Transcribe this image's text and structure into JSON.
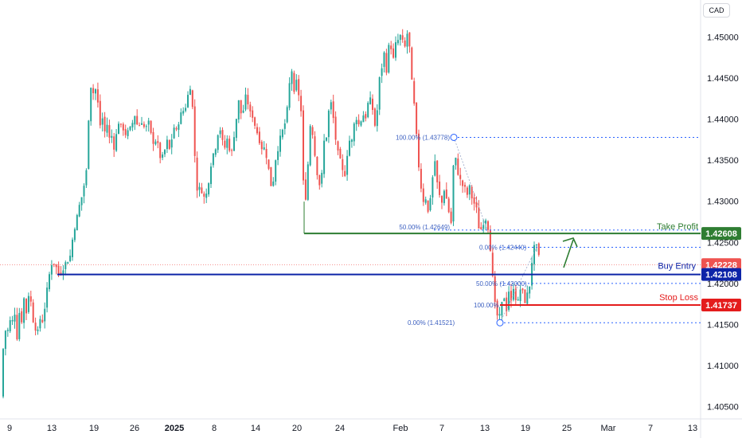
{
  "currency": "CAD",
  "colors": {
    "up": "#26a69a",
    "down": "#ef5350",
    "take_profit": "#2e7d32",
    "buy_entry": "#0d24a8",
    "stop_loss": "#e41c1c",
    "current": "#ef5350",
    "fib": "#2962ff",
    "axis_text": "#131722",
    "fib_text": "#3b5fc0"
  },
  "levels": {
    "take_profit": {
      "label": "Take Profit",
      "price_label": "1.42608",
      "price": 1.42608
    },
    "buy_entry": {
      "label": "Buy Entry",
      "price_label": "1.42108",
      "price": 1.42108
    },
    "stop_loss": {
      "label": "Stop Loss",
      "price_label": "1.41737",
      "price": 1.41737
    },
    "current": {
      "price_label": "1.42228",
      "price": 1.42228
    }
  },
  "fib_labels": {
    "top_100": "100.00% (1.43778)",
    "top_50": "50.00% (1.42649)",
    "right_0": "0.00% (1.42440)",
    "right_50": "50.00% (1.42000)",
    "right_100": "100.00%",
    "bottom_0": "0.00% (1.41521)"
  },
  "chart_data": {
    "type": "candlestick",
    "symbol_currency": "CAD",
    "ylim": [
      1.4035,
      1.4545
    ],
    "y_ticks": [
      "1.45000",
      "1.44500",
      "1.44000",
      "1.43500",
      "1.43000",
      "1.42500",
      "1.42000",
      "1.41500",
      "1.41000",
      "1.40500"
    ],
    "x_ticks": [
      "9",
      "13",
      "19",
      "26",
      "2025",
      "8",
      "14",
      "20",
      "24",
      "Feb",
      "7",
      "13",
      "19",
      "25",
      "Mar",
      "7",
      "13"
    ],
    "annotations": [
      {
        "type": "horizontal_level",
        "name": "Take Profit",
        "price": 1.42608
      },
      {
        "type": "horizontal_level",
        "name": "Buy Entry",
        "price": 1.42108
      },
      {
        "type": "horizontal_level",
        "name": "Stop Loss",
        "price": 1.41737
      },
      {
        "type": "fibonacci",
        "levels": [
          {
            "pct": "100.00%",
            "price": 1.43778
          },
          {
            "pct": "50.00%",
            "price": 1.42649
          }
        ]
      },
      {
        "type": "fibonacci",
        "levels": [
          {
            "pct": "0.00%",
            "price": 1.4244
          },
          {
            "pct": "50.00%",
            "price": 1.42
          },
          {
            "pct": "100.00%",
            "price": null
          },
          {
            "pct": "0.00%",
            "price": 1.41521
          }
        ]
      },
      {
        "type": "arrow",
        "direction": "up"
      }
    ],
    "current_price": 1.42228,
    "close_path": [
      [
        0,
        1.4062
      ],
      [
        3,
        1.4108
      ],
      [
        6,
        1.4145
      ],
      [
        9,
        1.4138
      ],
      [
        12,
        1.4155
      ],
      [
        15,
        1.4149
      ],
      [
        18,
        1.4172
      ],
      [
        21,
        1.4131
      ],
      [
        24,
        1.4166
      ],
      [
        27,
        1.4154
      ],
      [
        30,
        1.4182
      ],
      [
        33,
        1.4165
      ],
      [
        36,
        1.4188
      ],
      [
        39,
        1.4176
      ],
      [
        42,
        1.4154
      ],
      [
        45,
        1.4146
      ],
      [
        48,
        1.4138
      ],
      [
        51,
        1.4162
      ],
      [
        54,
        1.4153
      ],
      [
        57,
        1.4178
      ],
      [
        60,
        1.4196
      ],
      [
        63,
        1.4218
      ],
      [
        66,
        1.4229
      ],
      [
        69,
        1.4223
      ],
      [
        72,
        1.4216
      ],
      [
        75,
        1.4209
      ],
      [
        78,
        1.4222
      ],
      [
        81,
        1.4219
      ],
      [
        84,
        1.4231
      ],
      [
        87,
        1.4226
      ],
      [
        90,
        1.4246
      ],
      [
        93,
        1.4268
      ],
      [
        96,
        1.4276
      ],
      [
        99,
        1.4292
      ],
      [
        102,
        1.4302
      ],
      [
        105,
        1.4318
      ],
      [
        108,
        1.4326
      ],
      [
        111,
        1.4398
      ],
      [
        114,
        1.4442
      ],
      [
        117,
        1.4432
      ],
      [
        120,
        1.4436
      ],
      [
        123,
        1.4418
      ],
      [
        126,
        1.4391
      ],
      [
        129,
        1.4402
      ],
      [
        132,
        1.4382
      ],
      [
        135,
        1.4396
      ],
      [
        138,
        1.4371
      ],
      [
        141,
        1.4382
      ],
      [
        144,
        1.4362
      ],
      [
        147,
        1.4388
      ],
      [
        150,
        1.4402
      ],
      [
        153,
        1.4381
      ],
      [
        156,
        1.4395
      ],
      [
        159,
        1.4373
      ],
      [
        162,
        1.4392
      ],
      [
        165,
        1.4382
      ],
      [
        168,
        1.4411
      ],
      [
        171,
        1.4398
      ],
      [
        174,
        1.4388
      ],
      [
        177,
        1.4402
      ],
      [
        180,
        1.4392
      ],
      [
        183,
        1.4386
      ],
      [
        186,
        1.4398
      ],
      [
        189,
        1.4382
      ],
      [
        192,
        1.4373
      ],
      [
        195,
        1.4376
      ],
      [
        198,
        1.4368
      ],
      [
        201,
        1.4355
      ],
      [
        204,
        1.4352
      ],
      [
        207,
        1.4362
      ],
      [
        210,
        1.4372
      ],
      [
        213,
        1.4362
      ],
      [
        216,
        1.4378
      ],
      [
        219,
        1.4392
      ],
      [
        222,
        1.4382
      ],
      [
        225,
        1.4402
      ],
      [
        228,
        1.4406
      ],
      [
        231,
        1.4412
      ],
      [
        234,
        1.4418
      ],
      [
        237,
        1.4434
      ],
      [
        240,
        1.4446
      ],
      [
        243,
        1.4392
      ],
      [
        246,
        1.4328
      ],
      [
        249,
        1.4306
      ],
      [
        252,
        1.4322
      ],
      [
        255,
        1.4306
      ],
      [
        258,
        1.4302
      ],
      [
        261,
        1.4318
      ],
      [
        264,
        1.4342
      ],
      [
        267,
        1.4356
      ],
      [
        270,
        1.4362
      ],
      [
        273,
        1.4382
      ],
      [
        276,
        1.4392
      ],
      [
        279,
        1.4372
      ],
      [
        282,
        1.4364
      ],
      [
        285,
        1.4376
      ],
      [
        288,
        1.4366
      ],
      [
        291,
        1.4358
      ],
      [
        294,
        1.4382
      ],
      [
        297,
        1.4402
      ],
      [
        300,
        1.4422
      ],
      [
        303,
        1.4406
      ],
      [
        306,
        1.4412
      ],
      [
        309,
        1.4428
      ],
      [
        312,
        1.4418
      ],
      [
        315,
        1.4402
      ],
      [
        318,
        1.4406
      ],
      [
        321,
        1.4388
      ],
      [
        324,
        1.4382
      ],
      [
        327,
        1.4372
      ],
      [
        330,
        1.4362
      ],
      [
        333,
        1.4366
      ],
      [
        336,
        1.4348
      ],
      [
        339,
        1.4328
      ],
      [
        342,
        1.4312
      ],
      [
        345,
        1.4346
      ],
      [
        348,
        1.4362
      ],
      [
        351,
        1.4372
      ],
      [
        354,
        1.4382
      ],
      [
        357,
        1.4392
      ],
      [
        360,
        1.4402
      ],
      [
        363,
        1.4436
      ],
      [
        366,
        1.4466
      ],
      [
        369,
        1.4426
      ],
      [
        372,
        1.4446
      ],
      [
        375,
        1.4432
      ],
      [
        378,
        1.4412
      ],
      [
        381,
        1.4322
      ],
      [
        384,
        1.4306
      ],
      [
        387,
        1.4348
      ],
      [
        390,
        1.4398
      ],
      [
        393,
        1.4382
      ],
      [
        396,
        1.4352
      ],
      [
        399,
        1.4332
      ],
      [
        402,
        1.4318
      ],
      [
        405,
        1.4336
      ],
      [
        408,
        1.4388
      ],
      [
        411,
        1.4376
      ],
      [
        414,
        1.4428
      ],
      [
        417,
        1.4412
      ],
      [
        420,
        1.4392
      ],
      [
        423,
        1.4362
      ],
      [
        426,
        1.4352
      ],
      [
        429,
        1.4342
      ],
      [
        432,
        1.4326
      ],
      [
        435,
        1.4348
      ],
      [
        438,
        1.4378
      ],
      [
        441,
        1.4366
      ],
      [
        444,
        1.4388
      ],
      [
        447,
        1.4406
      ],
      [
        450,
        1.4392
      ],
      [
        453,
        1.4398
      ],
      [
        456,
        1.4406
      ],
      [
        459,
        1.4402
      ],
      [
        462,
        1.4418
      ],
      [
        465,
        1.4422
      ],
      [
        468,
        1.4412
      ],
      [
        471,
        1.4392
      ],
      [
        474,
        1.4412
      ],
      [
        477,
        1.4452
      ],
      [
        480,
        1.4466
      ],
      [
        483,
        1.4482
      ],
      [
        486,
        1.4456
      ],
      [
        489,
        1.4496
      ],
      [
        492,
        1.4486
      ],
      [
        495,
        1.4466
      ],
      [
        498,
        1.4502
      ],
      [
        501,
        1.4492
      ],
      [
        504,
        1.4506
      ],
      [
        507,
        1.4482
      ],
      [
        510,
        1.4492
      ],
      [
        513,
        1.4516
      ],
      [
        516,
        1.4452
      ],
      [
        519,
        1.4432
      ],
      [
        522,
        1.4392
      ],
      [
        525,
        1.4352
      ],
      [
        528,
        1.4326
      ],
      [
        531,
        1.4298
      ],
      [
        534,
        1.4312
      ],
      [
        537,
        1.4282
      ],
      [
        540,
        1.4302
      ],
      [
        543,
        1.4326
      ],
      [
        546,
        1.4352
      ],
      [
        549,
        1.4322
      ],
      [
        552,
        1.4306
      ],
      [
        555,
        1.4298
      ],
      [
        558,
        1.4316
      ],
      [
        561,
        1.4302
      ],
      [
        564,
        1.4286
      ],
      [
        567,
        1.4272
      ],
      [
        570,
        1.4356
      ],
      [
        573,
        1.4348
      ],
      [
        576,
        1.4332
      ],
      [
        579,
        1.4322
      ],
      [
        582,
        1.4318
      ],
      [
        585,
        1.4312
      ],
      [
        588,
        1.4306
      ],
      [
        591,
        1.4322
      ],
      [
        594,
        1.4292
      ],
      [
        597,
        1.4302
      ],
      [
        600,
        1.4276
      ],
      [
        603,
        1.4262
      ],
      [
        606,
        1.4272
      ],
      [
        609,
        1.4282
      ],
      [
        612,
        1.4276
      ],
      [
        615,
        1.4256
      ],
      [
        618,
        1.4216
      ],
      [
        621,
        1.4176
      ],
      [
        624,
        1.4162
      ],
      [
        627,
        1.4155
      ],
      [
        630,
        1.4172
      ],
      [
        633,
        1.4186
      ],
      [
        636,
        1.4168
      ],
      [
        639,
        1.4192
      ],
      [
        642,
        1.4176
      ],
      [
        645,
        1.4198
      ],
      [
        648,
        1.4182
      ],
      [
        651,
        1.4176
      ],
      [
        654,
        1.4196
      ],
      [
        657,
        1.4186
      ],
      [
        660,
        1.4178
      ],
      [
        663,
        1.4188
      ],
      [
        666,
        1.4202
      ],
      [
        669,
        1.4238
      ],
      [
        672,
        1.4244
      ],
      [
        675,
        1.4242
      ],
      [
        678,
        1.4223
      ]
    ]
  }
}
